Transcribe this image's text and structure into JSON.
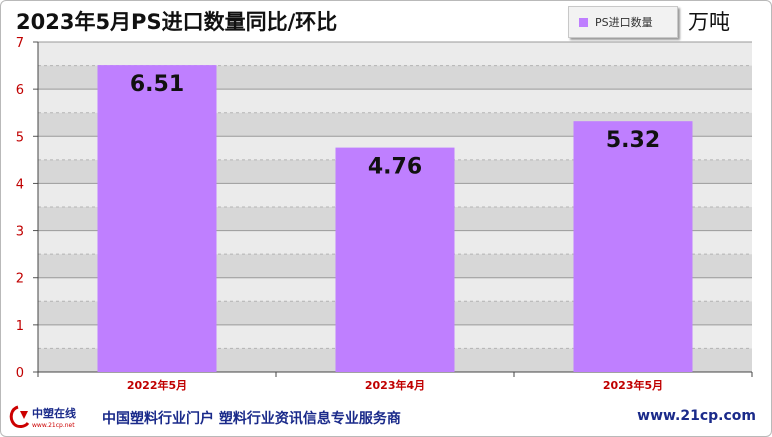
{
  "title": "2023年5月PS进口数量同比/环比",
  "unit": "万吨",
  "colors": {
    "bar": "#bf7fff",
    "axis_text": "#c00000",
    "brand_red": "#cc0000",
    "brand_blue": "#1a2a8a"
  },
  "chart_data": {
    "type": "bar",
    "categories": [
      "2022年5月",
      "2023年4月",
      "2023年5月"
    ],
    "series": [
      {
        "name": "PS进口数量",
        "values": [
          6.51,
          4.76,
          5.32
        ]
      }
    ],
    "data_labels": [
      "6.51",
      "4.76",
      "5.32"
    ],
    "ylim": [
      0,
      7
    ],
    "yticks": [
      "0",
      "1",
      "2",
      "3",
      "4",
      "5",
      "6",
      "7"
    ],
    "grid": true,
    "legend_position": "top-right"
  },
  "footer": {
    "logo_text": "中塑在线",
    "logo_subtext": "www.21cp.net",
    "tagline": "中国塑料行业门户 塑料行业资讯信息专业服务商",
    "url": "www.21cp.com"
  }
}
